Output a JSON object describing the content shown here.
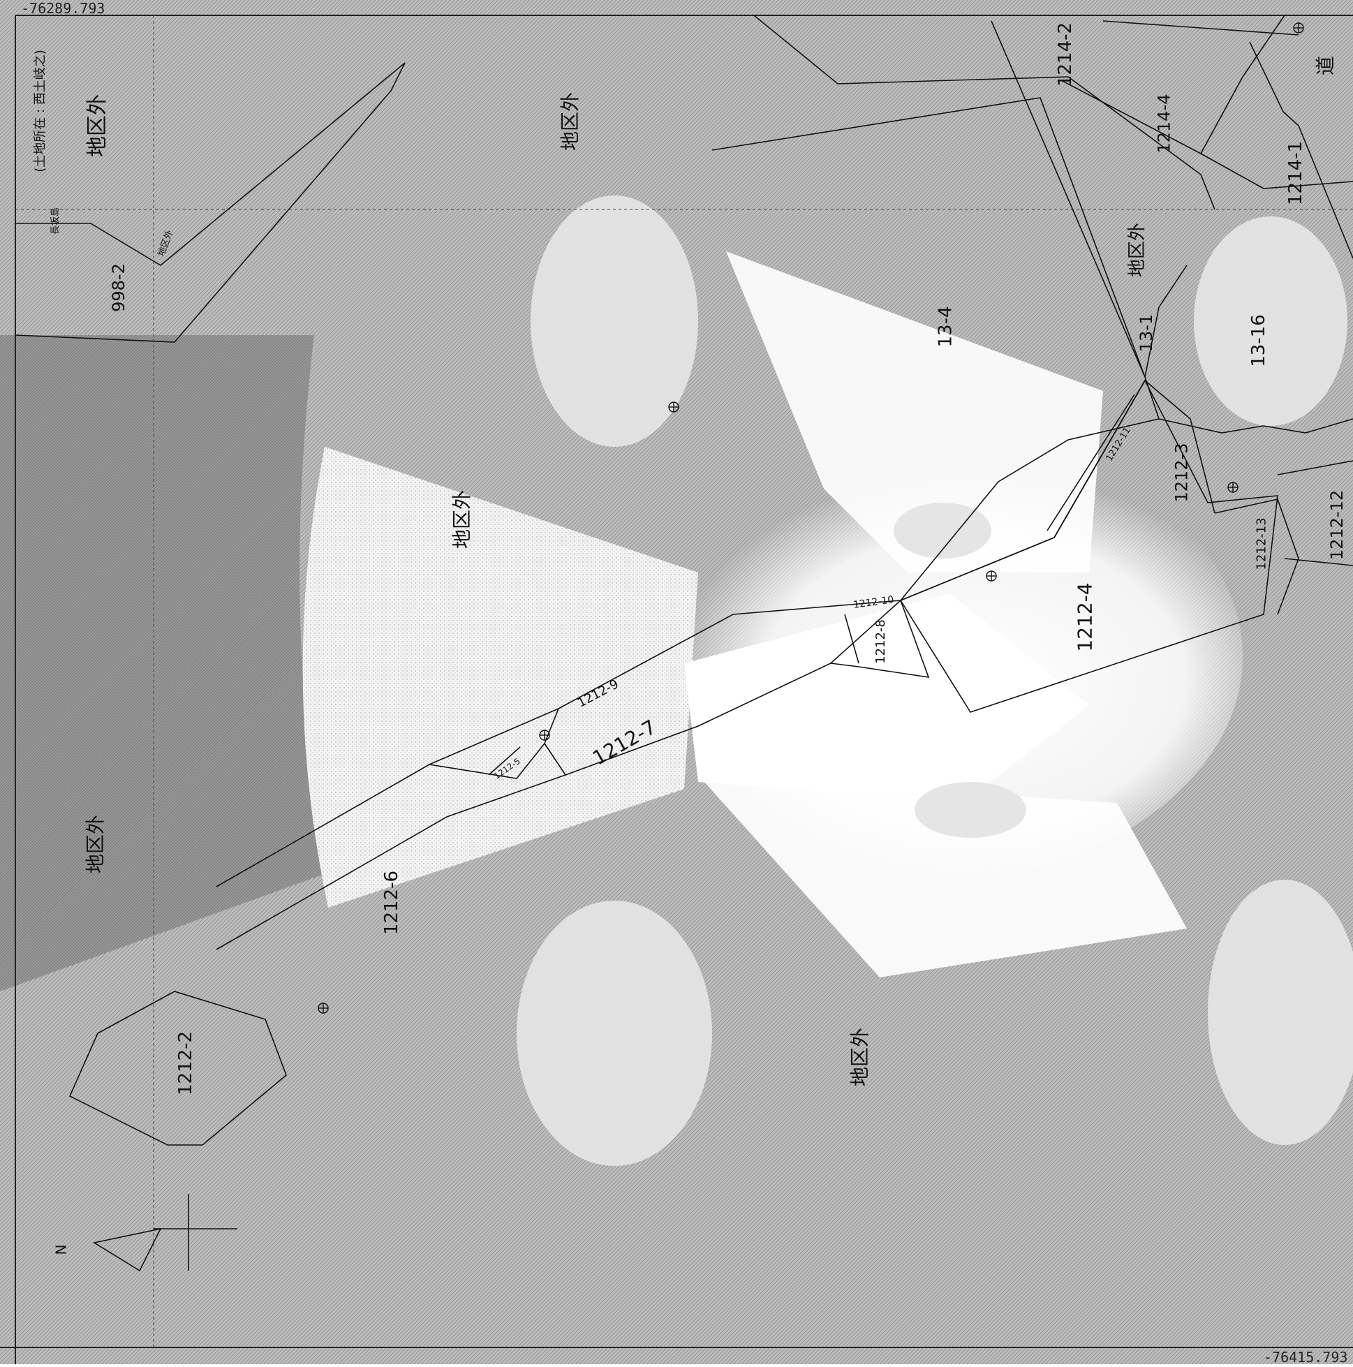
{
  "map": {
    "coords": {
      "top_left": "-76289.793",
      "bottom_right": "-76415.793"
    },
    "header_fragment": "(土地所在 : 西土岐之)",
    "north_label": "N",
    "symbols": {
      "benchmark": "⊕"
    },
    "out_of_district": "地区外",
    "parcels": [
      "998-2",
      "13-4",
      "13-1",
      "13-16",
      "1214-2",
      "1214-4",
      "1214-1",
      "1212-11",
      "1212-3",
      "1212-12",
      "1212-13",
      "1212-4",
      "1212-10",
      "1212-8",
      "1212-9",
      "1212-7",
      "1212-5",
      "1212-6",
      "1212-2"
    ],
    "misc": {
      "road": "道",
      "small_area": "地区外",
      "nameplate": "長坂島"
    }
  }
}
